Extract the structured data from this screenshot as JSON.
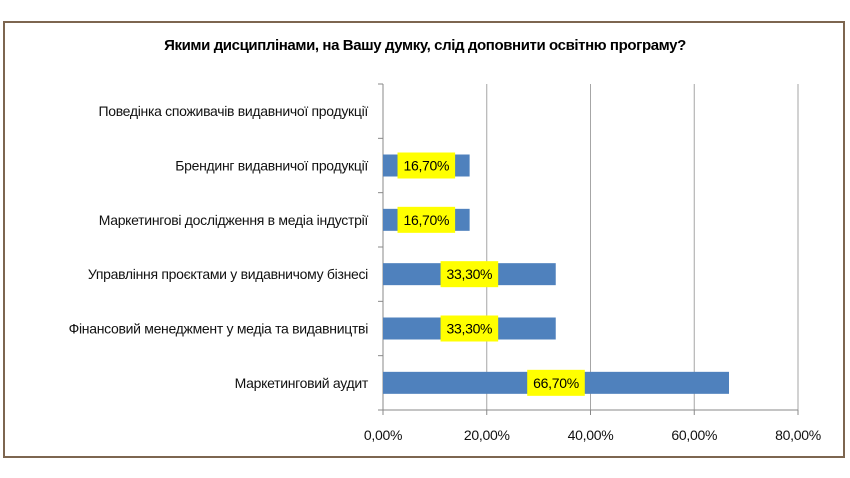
{
  "chart_data": {
    "type": "bar",
    "orientation": "horizontal",
    "title": "Якими дисциплінами, на Вашу думку, слід доповнити освітню програму?",
    "categories": [
      "Поведінка споживачів видавничої продукції",
      "Брендинг видавничої продукції",
      "Маркетингові дослідження в медіа індустрії",
      "Управління проєктами у видавничому бізнесі",
      "Фінансовий менеджмент у медіа та видавництві",
      "Маркетинговий аудит"
    ],
    "values": [
      0,
      16.7,
      16.7,
      33.3,
      33.3,
      66.7
    ],
    "data_labels": [
      "",
      "16,70%",
      "16,70%",
      "33,30%",
      "33,30%",
      "66,70%"
    ],
    "xlim": [
      0,
      80
    ],
    "x_ticks": [
      "0,00%",
      "20,00%",
      "40,00%",
      "60,00%",
      "80,00%"
    ],
    "xlabel": "",
    "ylabel": "",
    "grid": "vertical",
    "legend": "none",
    "colors": {
      "bar": "#4f81bd",
      "label_bg": "#ffff00",
      "frame": "#7d6650",
      "grid": "#a6a6a6"
    }
  }
}
